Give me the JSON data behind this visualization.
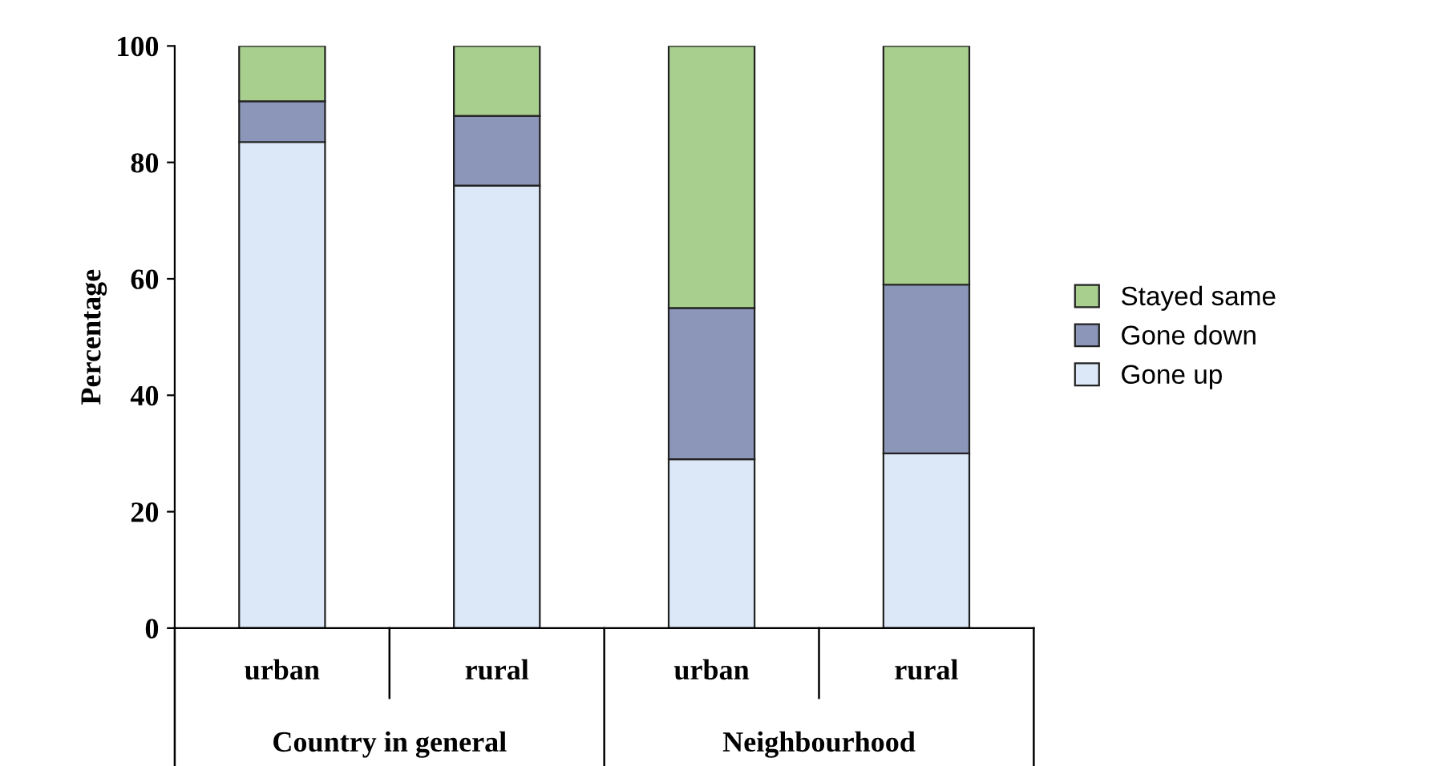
{
  "chart_data": {
    "type": "bar",
    "stacked": true,
    "ylabel": "Percentage",
    "categories": [
      "urban",
      "rural",
      "urban",
      "rural"
    ],
    "series": [
      {
        "name": "Gone up",
        "color": "#dce8f8",
        "values": [
          83.5,
          76,
          29,
          30
        ]
      },
      {
        "name": "Gone down",
        "color": "#8b96b8",
        "values": [
          7,
          12,
          26,
          29
        ]
      },
      {
        "name": "Stayed same",
        "color": "#a9cf8f",
        "values": [
          9.5,
          12,
          45,
          41
        ]
      }
    ],
    "ylim": [
      0,
      100
    ],
    "yticks": [
      0,
      20,
      40,
      60,
      80,
      100
    ],
    "grid": false,
    "legend": "right",
    "annotations": [
      "Country in general",
      "Neighbourhood"
    ]
  }
}
